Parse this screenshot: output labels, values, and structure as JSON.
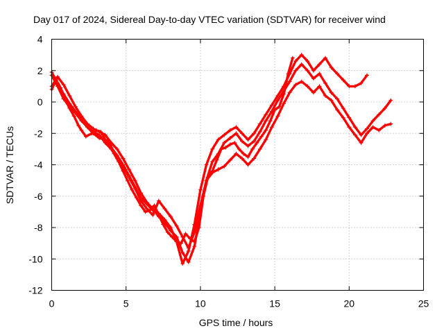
{
  "chart_data": {
    "type": "line",
    "title": "Day 017 of 2024, Sidereal Day-to-day VTEC variation (SDTVAR) for receiver wind",
    "xlabel": "GPS time / hours",
    "ylabel": "SDTVAR / TECUs",
    "xlim": [
      0,
      25
    ],
    "ylim": [
      -12,
      4
    ],
    "xticks": [
      0,
      5,
      10,
      15,
      20,
      25
    ],
    "yticks": [
      4,
      2,
      0,
      -2,
      -4,
      -6,
      -8,
      -10,
      -12
    ],
    "grid": true,
    "legend": "none",
    "marker": "plus",
    "color": "#ff0000",
    "series": [
      {
        "x": [
          0.0,
          0.3,
          0.6,
          0.9,
          1.2,
          1.5,
          1.8,
          2.0,
          2.3,
          2.7,
          3.0,
          3.3,
          3.6,
          3.9,
          4.2,
          4.5,
          4.8,
          5.1,
          5.4,
          5.7,
          6.0,
          6.3,
          6.6,
          6.9,
          7.2,
          7.5,
          7.8,
          8.1,
          8.4,
          8.7,
          9.0,
          9.3,
          9.6,
          9.9,
          10.2,
          10.5,
          10.8,
          11.1,
          11.4,
          11.7,
          12.0,
          12.3,
          12.6,
          12.9,
          13.2,
          13.5,
          13.8,
          14.1,
          14.4,
          14.7,
          15.0,
          15.3,
          15.6,
          15.9,
          16.2
        ],
        "y": [
          0.8,
          1.4,
          0.9,
          0.2,
          -0.4,
          -0.9,
          -1.5,
          -1.8,
          -2.2,
          -2.0,
          -1.8,
          -1.9,
          -2.4,
          -2.6,
          -3.3,
          -3.8,
          -4.4,
          -5.0,
          -5.6,
          -6.1,
          -6.6,
          -7.0,
          -6.9,
          -6.6,
          -7.2,
          -7.8,
          -8.3,
          -8.6,
          -8.9,
          -9.0,
          -8.4,
          -8.7,
          -8.9,
          -8.0,
          -6.0,
          -4.8,
          -4.4,
          -3.7,
          -3.0,
          -2.9,
          -2.7,
          -2.6,
          -3.0,
          -3.3,
          -3.5,
          -3.0,
          -2.6,
          -2.2,
          -1.8,
          -1.2,
          -0.5,
          -0.3,
          0.5,
          1.8,
          2.8
        ]
      },
      {
        "x": [
          0.0,
          0.4,
          0.8,
          1.2,
          1.6,
          2.0,
          2.4,
          2.8,
          3.2,
          3.6,
          4.0,
          4.4,
          4.8,
          5.2,
          5.6,
          6.0,
          6.4,
          6.8,
          7.2,
          7.6,
          8.0,
          8.4,
          8.8,
          9.2,
          9.6,
          10.0,
          10.4,
          10.8,
          11.2,
          11.6,
          12.0,
          12.4,
          12.8,
          13.2,
          13.6,
          14.0,
          14.4,
          14.8,
          15.2,
          15.6,
          16.0,
          16.4,
          16.8,
          17.2,
          17.6,
          18.0,
          18.4,
          18.8,
          19.2,
          19.6,
          20.0,
          20.4,
          20.8,
          21.2,
          21.6,
          22.0,
          22.4,
          22.8
        ],
        "y": [
          1.0,
          1.6,
          1.1,
          0.4,
          -0.3,
          -0.9,
          -1.4,
          -1.7,
          -1.9,
          -2.1,
          -2.6,
          -3.0,
          -3.6,
          -4.3,
          -5.0,
          -5.8,
          -6.4,
          -6.8,
          -7.3,
          -7.7,
          -8.2,
          -8.6,
          -9.6,
          -10.2,
          -9.2,
          -7.0,
          -5.0,
          -4.5,
          -4.3,
          -4.1,
          -3.7,
          -3.3,
          -3.6,
          -4.0,
          -3.6,
          -3.0,
          -2.4,
          -1.6,
          -0.9,
          -0.1,
          0.6,
          1.1,
          1.3,
          1.0,
          0.6,
          1.0,
          0.4,
          0.1,
          -0.5,
          -1.0,
          -1.6,
          -2.1,
          -2.6,
          -2.0,
          -1.6,
          -1.8,
          -1.5,
          -1.4
        ]
      },
      {
        "x": [
          0.0,
          0.4,
          0.8,
          1.2,
          1.6,
          2.0,
          2.4,
          2.8,
          3.2,
          3.6,
          4.0,
          4.4,
          4.8,
          5.2,
          5.6,
          6.0,
          6.4,
          6.8,
          7.2,
          7.6,
          8.0,
          8.4,
          8.8,
          9.2,
          9.6,
          10.0,
          10.4,
          10.8,
          11.2,
          11.6,
          12.0,
          12.4,
          12.8,
          13.2,
          13.6,
          14.0,
          14.4,
          14.8,
          15.2,
          15.6,
          16.0,
          16.4,
          16.8,
          17.2,
          17.6,
          18.0,
          18.4,
          18.8,
          19.2,
          19.6,
          20.0,
          20.4,
          20.8,
          21.2
        ],
        "y": [
          1.9,
          1.2,
          0.5,
          -0.1,
          -0.6,
          -1.1,
          -1.6,
          -2.0,
          -2.3,
          -2.4,
          -2.9,
          -3.4,
          -4.0,
          -4.7,
          -5.4,
          -6.1,
          -6.5,
          -6.9,
          -7.1,
          -7.5,
          -8.0,
          -8.9,
          -10.3,
          -9.5,
          -7.8,
          -5.6,
          -4.0,
          -3.0,
          -2.4,
          -2.1,
          -1.8,
          -1.6,
          -2.0,
          -2.4,
          -2.0,
          -1.4,
          -0.8,
          -0.2,
          0.4,
          1.0,
          1.8,
          2.6,
          3.0,
          2.6,
          2.0,
          2.4,
          2.8,
          2.2,
          1.8,
          1.4,
          1.0,
          1.0,
          1.2,
          1.7
        ]
      },
      {
        "x": [
          0.0,
          0.4,
          0.8,
          1.2,
          1.6,
          2.0,
          2.4,
          2.8,
          3.2,
          3.6,
          4.0,
          4.4,
          4.8,
          5.2,
          5.6,
          6.0,
          6.4,
          6.8,
          7.2,
          7.6,
          8.0,
          8.4,
          8.8,
          9.2,
          9.6,
          10.0,
          10.4,
          10.8,
          11.2,
          11.6,
          12.0,
          12.4,
          12.8,
          13.2,
          13.6,
          14.0,
          14.4,
          14.8,
          15.2,
          15.6,
          16.0,
          16.4,
          16.8,
          17.2,
          17.6,
          18.0,
          18.4,
          18.8,
          19.2,
          19.6,
          20.0,
          20.4,
          20.8,
          21.2,
          21.6,
          22.0,
          22.4,
          22.8
        ],
        "y": [
          1.7,
          1.0,
          0.2,
          -0.3,
          -0.7,
          -1.2,
          -1.6,
          -1.9,
          -2.1,
          -2.6,
          -3.0,
          -3.6,
          -4.1,
          -4.8,
          -5.5,
          -6.3,
          -6.8,
          -7.2,
          -6.3,
          -6.8,
          -7.3,
          -7.9,
          -8.6,
          -9.3,
          -8.3,
          -6.6,
          -5.0,
          -3.8,
          -3.3,
          -2.6,
          -2.3,
          -2.0,
          -2.5,
          -2.8,
          -2.5,
          -1.9,
          -1.2,
          -0.6,
          0.1,
          0.7,
          1.3,
          2.0,
          2.4,
          2.0,
          1.5,
          1.8,
          1.2,
          0.6,
          0.2,
          -0.4,
          -1.0,
          -1.6,
          -2.1,
          -1.7,
          -1.2,
          -0.8,
          -0.4,
          0.1
        ]
      }
    ]
  }
}
